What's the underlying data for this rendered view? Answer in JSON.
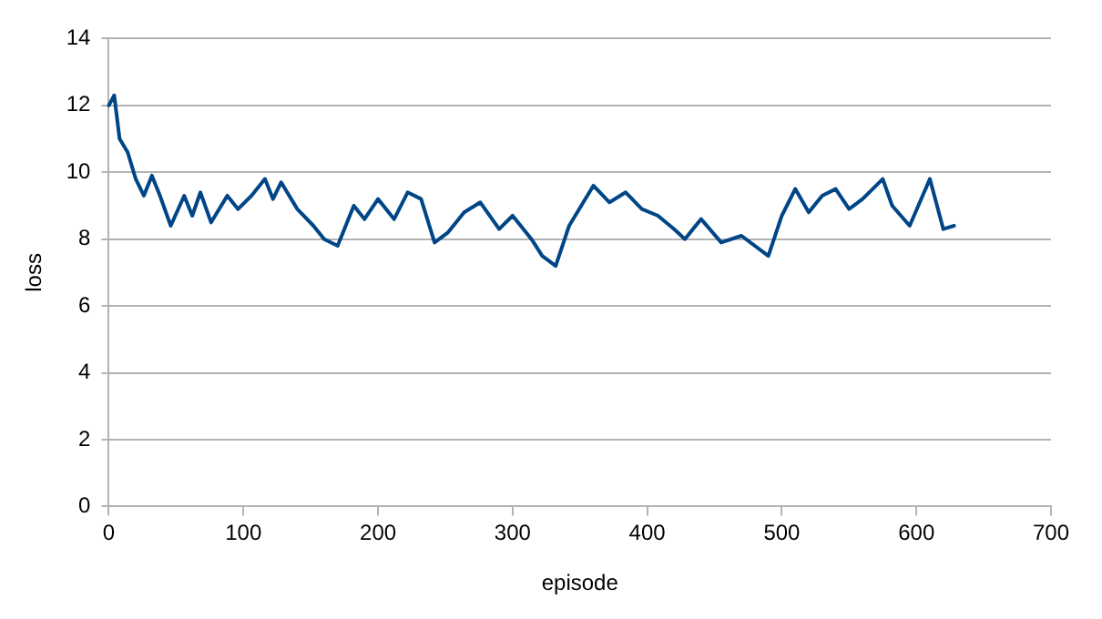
{
  "chart_data": {
    "type": "line",
    "xlabel": "episode",
    "ylabel": "loss",
    "x": [
      0,
      4,
      8,
      14,
      20,
      26,
      32,
      38,
      46,
      56,
      62,
      68,
      76,
      88,
      96,
      106,
      116,
      122,
      128,
      140,
      152,
      160,
      170,
      182,
      190,
      200,
      212,
      222,
      232,
      242,
      252,
      264,
      276,
      290,
      300,
      314,
      322,
      332,
      342,
      360,
      372,
      384,
      396,
      408,
      420,
      428,
      440,
      455,
      470,
      490,
      500,
      510,
      520,
      530,
      540,
      550,
      560,
      575,
      582,
      595,
      610,
      620,
      628
    ],
    "series": [
      {
        "color": "#004586",
        "values": [
          12.0,
          12.3,
          11.0,
          10.6,
          9.8,
          9.3,
          9.9,
          9.3,
          8.4,
          9.3,
          8.7,
          9.4,
          8.5,
          9.3,
          8.9,
          9.3,
          9.8,
          9.2,
          9.7,
          8.9,
          8.4,
          8.0,
          7.8,
          9.0,
          8.6,
          9.2,
          8.6,
          9.4,
          9.2,
          7.9,
          8.2,
          8.8,
          9.1,
          8.3,
          8.7,
          8.0,
          7.5,
          7.2,
          8.4,
          9.6,
          9.1,
          9.4,
          8.9,
          8.7,
          8.3,
          8.0,
          8.6,
          7.9,
          8.1,
          7.5,
          8.7,
          9.5,
          8.8,
          9.3,
          9.5,
          8.9,
          9.2,
          9.8,
          9.0,
          8.4,
          9.8,
          8.3,
          8.4
        ]
      }
    ],
    "xlim": [
      0,
      700
    ],
    "xticks": [
      0,
      100,
      200,
      300,
      400,
      500,
      600,
      700
    ],
    "ylim": [
      0,
      14
    ],
    "yticks": [
      0,
      2,
      4,
      6,
      8,
      10,
      12,
      14
    ],
    "grid": "y",
    "legend": false,
    "marker": "none",
    "line_style": "solid"
  }
}
